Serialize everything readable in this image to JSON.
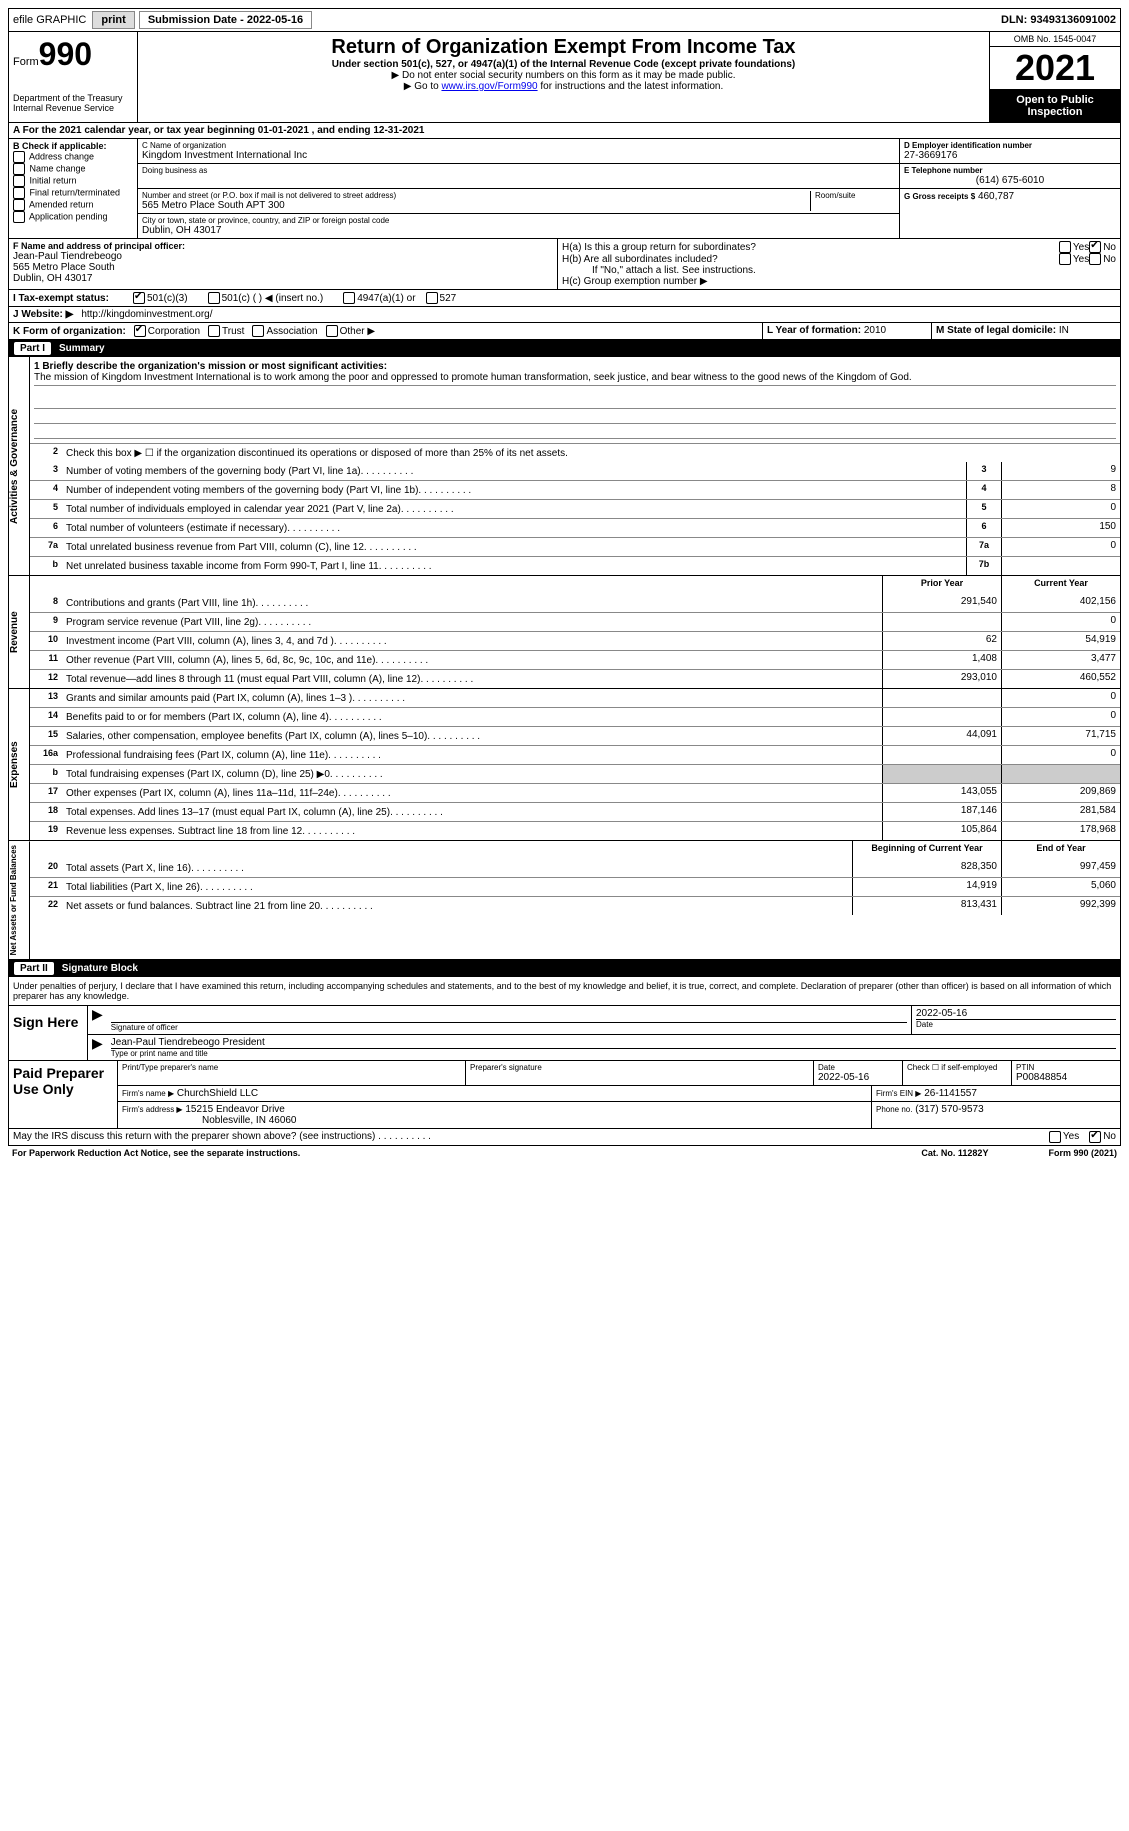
{
  "topbar": {
    "efile_label": "efile GRAPHIC",
    "print_btn": "print",
    "submission_label": "Submission Date - 2022-05-16",
    "dln_label": "DLN: 93493136091002"
  },
  "header": {
    "form_label": "Form",
    "form_num": "990",
    "dept": "Department of the Treasury\nInternal Revenue Service",
    "title": "Return of Organization Exempt From Income Tax",
    "subtitle": "Under section 501(c), 527, or 4947(a)(1) of the Internal Revenue Code (except private foundations)",
    "note1": "▶ Do not enter social security numbers on this form as it may be made public.",
    "note2_pre": "▶ Go to ",
    "note2_link": "www.irs.gov/Form990",
    "note2_post": " for instructions and the latest information.",
    "omb": "OMB No. 1545-0047",
    "year": "2021",
    "open_inspect": "Open to Public Inspection"
  },
  "row_a": "A For the 2021 calendar year, or tax year beginning 01-01-2021   , and ending 12-31-2021",
  "box_b": {
    "title": "B Check if applicable:",
    "opts": [
      "Address change",
      "Name change",
      "Initial return",
      "Final return/terminated",
      "Amended return",
      "Application pending"
    ]
  },
  "box_c": {
    "name_label": "C Name of organization",
    "name": "Kingdom Investment International Inc",
    "dba_label": "Doing business as",
    "addr_label": "Number and street (or P.O. box if mail is not delivered to street address)",
    "room_label": "Room/suite",
    "addr": "565 Metro Place South APT 300",
    "city_label": "City or town, state or province, country, and ZIP or foreign postal code",
    "city": "Dublin, OH  43017"
  },
  "box_d": {
    "ein_label": "D Employer identification number",
    "ein": "27-3669176",
    "tel_label": "E Telephone number",
    "tel": "(614) 675-6010",
    "gross_label": "G Gross receipts $",
    "gross": "460,787"
  },
  "box_f": {
    "label": "F Name and address of principal officer:",
    "name": "Jean-Paul Tiendrebeogo",
    "addr1": "565 Metro Place South",
    "addr2": "Dublin, OH  43017"
  },
  "box_h": {
    "ha": "H(a)  Is this a group return for subordinates?",
    "hb": "H(b)  Are all subordinates included?",
    "hb_note": "If \"No,\" attach a list. See instructions.",
    "hc": "H(c)  Group exemption number ▶",
    "yes": "Yes",
    "no": "No"
  },
  "row_i": {
    "label": "I  Tax-exempt status:",
    "opts": [
      "501(c)(3)",
      "501(c) (  ) ◀ (insert no.)",
      "4947(a)(1) or",
      "527"
    ]
  },
  "row_j": {
    "label": "J  Website: ▶",
    "url": "http://kingdominvestment.org/"
  },
  "row_k": {
    "label": "K Form of organization:",
    "opts": [
      "Corporation",
      "Trust",
      "Association",
      "Other ▶"
    ]
  },
  "row_lm": {
    "l_label": "L Year of formation:",
    "l_val": "2010",
    "m_label": "M State of legal domicile:",
    "m_val": "IN"
  },
  "part1": {
    "title_num": "Part I",
    "title": "Summary",
    "line1_label": "1  Briefly describe the organization's mission or most significant activities:",
    "mission": "The mission of Kingdom Investment International is to work among the poor and oppressed to promote human transformation, seek justice, and bear witness to the good news of the Kingdom of God.",
    "line2": "Check this box ▶ ☐ if the organization discontinued its operations or disposed of more than 25% of its net assets.",
    "side_act": "Activities & Governance",
    "side_rev": "Revenue",
    "side_exp": "Expenses",
    "side_net": "Net Assets or Fund Balances",
    "prior_year": "Prior Year",
    "current_year": "Current Year",
    "begin_year": "Beginning of Current Year",
    "end_year": "End of Year",
    "lines_gov": [
      {
        "n": "3",
        "t": "Number of voting members of the governing body (Part VI, line 1a)",
        "b": "3",
        "v": "9"
      },
      {
        "n": "4",
        "t": "Number of independent voting members of the governing body (Part VI, line 1b)",
        "b": "4",
        "v": "8"
      },
      {
        "n": "5",
        "t": "Total number of individuals employed in calendar year 2021 (Part V, line 2a)",
        "b": "5",
        "v": "0"
      },
      {
        "n": "6",
        "t": "Total number of volunteers (estimate if necessary)",
        "b": "6",
        "v": "150"
      },
      {
        "n": "7a",
        "t": "Total unrelated business revenue from Part VIII, column (C), line 12",
        "b": "7a",
        "v": "0"
      },
      {
        "n": "b",
        "t": "Net unrelated business taxable income from Form 990-T, Part I, line 11",
        "b": "7b",
        "v": ""
      }
    ],
    "lines_rev": [
      {
        "n": "8",
        "t": "Contributions and grants (Part VIII, line 1h)",
        "p": "291,540",
        "c": "402,156"
      },
      {
        "n": "9",
        "t": "Program service revenue (Part VIII, line 2g)",
        "p": "",
        "c": "0"
      },
      {
        "n": "10",
        "t": "Investment income (Part VIII, column (A), lines 3, 4, and 7d )",
        "p": "62",
        "c": "54,919"
      },
      {
        "n": "11",
        "t": "Other revenue (Part VIII, column (A), lines 5, 6d, 8c, 9c, 10c, and 11e)",
        "p": "1,408",
        "c": "3,477"
      },
      {
        "n": "12",
        "t": "Total revenue—add lines 8 through 11 (must equal Part VIII, column (A), line 12)",
        "p": "293,010",
        "c": "460,552"
      }
    ],
    "lines_exp": [
      {
        "n": "13",
        "t": "Grants and similar amounts paid (Part IX, column (A), lines 1–3 )",
        "p": "",
        "c": "0"
      },
      {
        "n": "14",
        "t": "Benefits paid to or for members (Part IX, column (A), line 4)",
        "p": "",
        "c": "0"
      },
      {
        "n": "15",
        "t": "Salaries, other compensation, employee benefits (Part IX, column (A), lines 5–10)",
        "p": "44,091",
        "c": "71,715"
      },
      {
        "n": "16a",
        "t": "Professional fundraising fees (Part IX, column (A), line 11e)",
        "p": "",
        "c": "0"
      },
      {
        "n": "b",
        "t": "Total fundraising expenses (Part IX, column (D), line 25) ▶0",
        "p": "shaded",
        "c": "shaded"
      },
      {
        "n": "17",
        "t": "Other expenses (Part IX, column (A), lines 11a–11d, 11f–24e)",
        "p": "143,055",
        "c": "209,869"
      },
      {
        "n": "18",
        "t": "Total expenses. Add lines 13–17 (must equal Part IX, column (A), line 25)",
        "p": "187,146",
        "c": "281,584"
      },
      {
        "n": "19",
        "t": "Revenue less expenses. Subtract line 18 from line 12",
        "p": "105,864",
        "c": "178,968"
      }
    ],
    "lines_net": [
      {
        "n": "20",
        "t": "Total assets (Part X, line 16)",
        "p": "828,350",
        "c": "997,459"
      },
      {
        "n": "21",
        "t": "Total liabilities (Part X, line 26)",
        "p": "14,919",
        "c": "5,060"
      },
      {
        "n": "22",
        "t": "Net assets or fund balances. Subtract line 21 from line 20",
        "p": "813,431",
        "c": "992,399"
      }
    ]
  },
  "part2": {
    "title_num": "Part II",
    "title": "Signature Block",
    "decl": "Under penalties of perjury, I declare that I have examined this return, including accompanying schedules and statements, and to the best of my knowledge and belief, it is true, correct, and complete. Declaration of preparer (other than officer) is based on all information of which preparer has any knowledge.",
    "sign_here": "Sign Here",
    "sig_officer": "Signature of officer",
    "date_label": "Date",
    "date_val": "2022-05-16",
    "name_title": "Jean-Paul Tiendrebeogo  President",
    "type_label": "Type or print name and title"
  },
  "paid": {
    "title": "Paid Preparer Use Only",
    "print_label": "Print/Type preparer's name",
    "sig_label": "Preparer's signature",
    "date_label": "Date",
    "date_val": "2022-05-16",
    "check_label": "Check ☐ if self-employed",
    "ptin_label": "PTIN",
    "ptin": "P00848854",
    "firm_name_label": "Firm's name    ▶",
    "firm_name": "ChurchShield LLC",
    "firm_ein_label": "Firm's EIN ▶",
    "firm_ein": "26-1141557",
    "firm_addr_label": "Firm's address ▶",
    "firm_addr1": "15215 Endeavor Drive",
    "firm_addr2": "Noblesville, IN  46060",
    "phone_label": "Phone no.",
    "phone": "(317) 570-9573"
  },
  "footer": {
    "discuss": "May the IRS discuss this return with the preparer shown above? (see instructions)",
    "yes": "Yes",
    "no": "No",
    "paperwork": "For Paperwork Reduction Act Notice, see the separate instructions.",
    "cat": "Cat. No. 11282Y",
    "form": "Form 990 (2021)"
  }
}
